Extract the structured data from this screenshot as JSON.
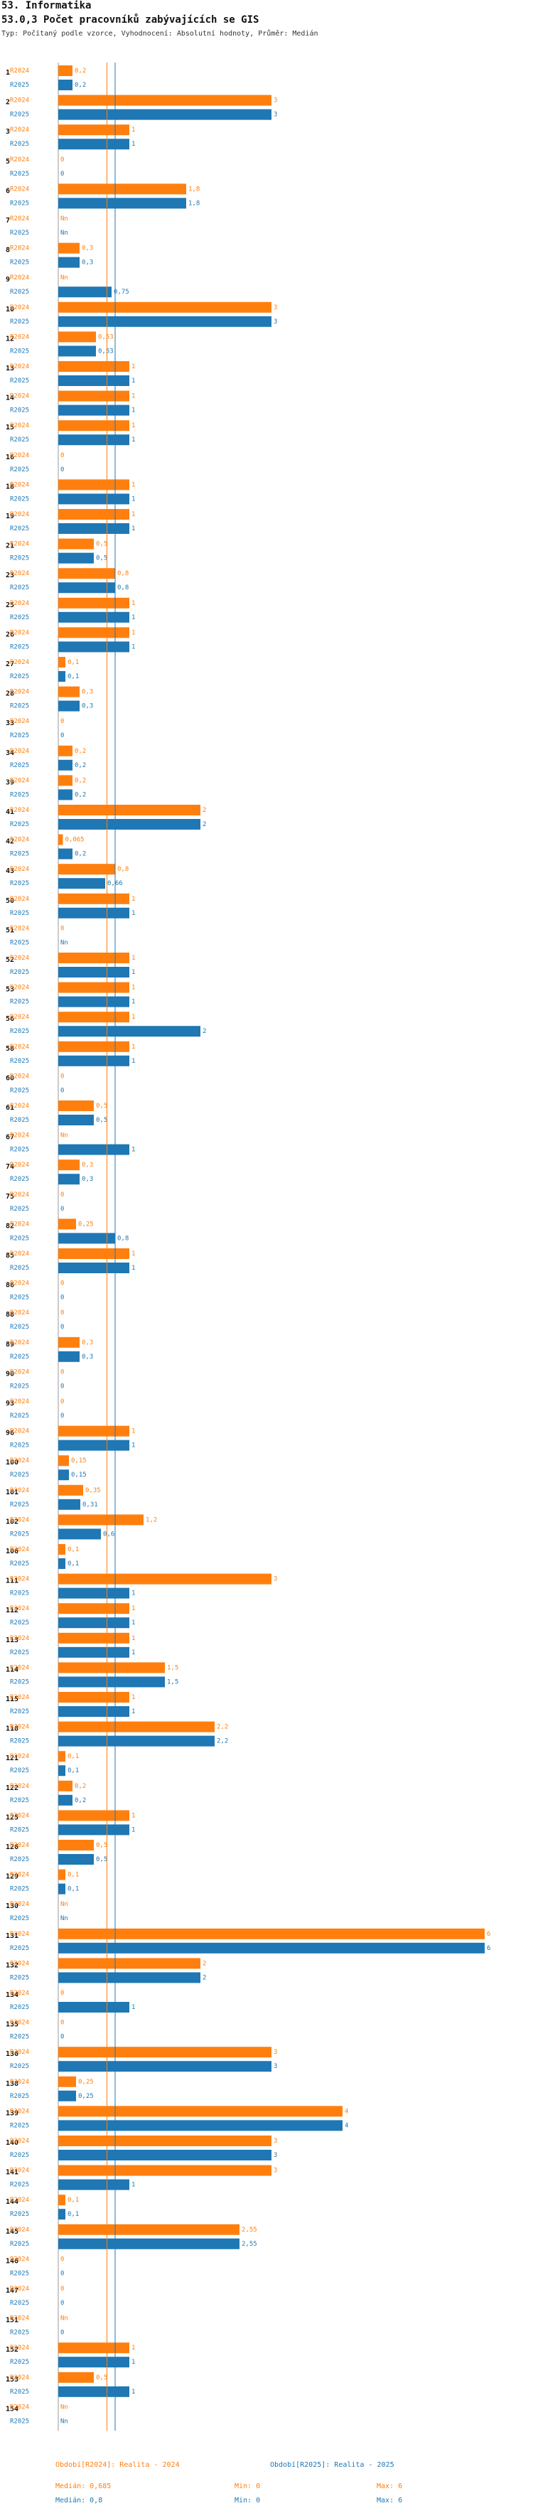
{
  "header": {
    "section": "53. Informatika",
    "indicator": "53.0,3 Počet pracovníků zabývajících se GIS",
    "type_line": "Typ: Počítaný podle vzorce, Vyhodnocení: Absolutní hodnoty, Průměr: Medián"
  },
  "colors": {
    "r2024": "#ff7f0e",
    "r2025": "#1f77b4"
  },
  "chart_data": {
    "type": "bar",
    "orientation": "horizontal",
    "series_labels": [
      "R2024",
      "R2025"
    ],
    "xlim": [
      0,
      6
    ],
    "median_lines": {
      "r2024": 0.685,
      "r2025": 0.8
    },
    "categories": [
      "1",
      "2",
      "3",
      "5",
      "6",
      "7",
      "8",
      "9",
      "10",
      "12",
      "13",
      "14",
      "15",
      "16",
      "18",
      "19",
      "21",
      "23",
      "25",
      "26",
      "27",
      "28",
      "33",
      "34",
      "39",
      "41",
      "42",
      "43",
      "50",
      "51",
      "52",
      "53",
      "56",
      "58",
      "60",
      "61",
      "67",
      "74",
      "75",
      "82",
      "85",
      "86",
      "88",
      "89",
      "90",
      "93",
      "96",
      "100",
      "101",
      "102",
      "106",
      "111",
      "112",
      "113",
      "114",
      "115",
      "118",
      "121",
      "122",
      "125",
      "126",
      "129",
      "130",
      "131",
      "132",
      "134",
      "135",
      "136",
      "138",
      "139",
      "140",
      "141",
      "144",
      "145",
      "146",
      "147",
      "151",
      "152",
      "153",
      "154"
    ],
    "r2024": [
      {
        "v": 0.2,
        "t": "0,2"
      },
      {
        "v": 3,
        "t": "3"
      },
      {
        "v": 1,
        "t": "1"
      },
      {
        "v": 0,
        "t": "0"
      },
      {
        "v": 1.8,
        "t": "1,8"
      },
      {
        "v": null,
        "t": "Nn"
      },
      {
        "v": 0.3,
        "t": "0,3"
      },
      {
        "v": null,
        "t": "Nn"
      },
      {
        "v": 3,
        "t": "3"
      },
      {
        "v": 0.53,
        "t": "0,53"
      },
      {
        "v": 1,
        "t": "1"
      },
      {
        "v": 1,
        "t": "1"
      },
      {
        "v": 1,
        "t": "1"
      },
      {
        "v": 0,
        "t": "0"
      },
      {
        "v": 1,
        "t": "1"
      },
      {
        "v": 1,
        "t": "1"
      },
      {
        "v": 0.5,
        "t": "0,5"
      },
      {
        "v": 0.8,
        "t": "0,8"
      },
      {
        "v": 1,
        "t": "1"
      },
      {
        "v": 1,
        "t": "1"
      },
      {
        "v": 0.1,
        "t": "0,1"
      },
      {
        "v": 0.3,
        "t": "0,3"
      },
      {
        "v": 0,
        "t": "0"
      },
      {
        "v": 0.2,
        "t": "0,2"
      },
      {
        "v": 0.2,
        "t": "0,2"
      },
      {
        "v": 2,
        "t": "2"
      },
      {
        "v": 0.065,
        "t": "0,065"
      },
      {
        "v": 0.8,
        "t": "0,8"
      },
      {
        "v": 1,
        "t": "1"
      },
      {
        "v": 0,
        "t": "0"
      },
      {
        "v": 1,
        "t": "1"
      },
      {
        "v": 1,
        "t": "1"
      },
      {
        "v": 1,
        "t": "1"
      },
      {
        "v": 1,
        "t": "1"
      },
      {
        "v": 0,
        "t": "0"
      },
      {
        "v": 0.5,
        "t": "0,5"
      },
      {
        "v": null,
        "t": "Nn"
      },
      {
        "v": 0.3,
        "t": "0,3"
      },
      {
        "v": 0,
        "t": "0"
      },
      {
        "v": 0.25,
        "t": "0,25"
      },
      {
        "v": 1,
        "t": "1"
      },
      {
        "v": 0,
        "t": "0"
      },
      {
        "v": 0,
        "t": "0"
      },
      {
        "v": 0.3,
        "t": "0,3"
      },
      {
        "v": 0,
        "t": "0"
      },
      {
        "v": 0,
        "t": "0"
      },
      {
        "v": 1,
        "t": "1"
      },
      {
        "v": 0.15,
        "t": "0,15"
      },
      {
        "v": 0.35,
        "t": "0,35"
      },
      {
        "v": 1.2,
        "t": "1,2"
      },
      {
        "v": 0.1,
        "t": "0,1"
      },
      {
        "v": 3,
        "t": "3"
      },
      {
        "v": 1,
        "t": "1"
      },
      {
        "v": 1,
        "t": "1"
      },
      {
        "v": 1.5,
        "t": "1,5"
      },
      {
        "v": 1,
        "t": "1"
      },
      {
        "v": 2.2,
        "t": "2,2"
      },
      {
        "v": 0.1,
        "t": "0,1"
      },
      {
        "v": 0.2,
        "t": "0,2"
      },
      {
        "v": 1,
        "t": "1"
      },
      {
        "v": 0.5,
        "t": "0,5"
      },
      {
        "v": 0.1,
        "t": "0,1"
      },
      {
        "v": null,
        "t": "Nn"
      },
      {
        "v": 6,
        "t": "6"
      },
      {
        "v": 2,
        "t": "2"
      },
      {
        "v": 0,
        "t": "0"
      },
      {
        "v": 0,
        "t": "0"
      },
      {
        "v": 3,
        "t": "3"
      },
      {
        "v": 0.25,
        "t": "0,25"
      },
      {
        "v": 4,
        "t": "4"
      },
      {
        "v": 3,
        "t": "3"
      },
      {
        "v": 3,
        "t": "3"
      },
      {
        "v": 0.1,
        "t": "0,1"
      },
      {
        "v": 2.55,
        "t": "2,55"
      },
      {
        "v": 0,
        "t": "0"
      },
      {
        "v": 0,
        "t": "0"
      },
      {
        "v": null,
        "t": "Nn"
      },
      {
        "v": 1,
        "t": "1"
      },
      {
        "v": 0.5,
        "t": "0,5"
      },
      {
        "v": null,
        "t": "Nn"
      }
    ],
    "r2025": [
      {
        "v": 0.2,
        "t": "0,2"
      },
      {
        "v": 3,
        "t": "3"
      },
      {
        "v": 1,
        "t": "1"
      },
      {
        "v": 0,
        "t": "0"
      },
      {
        "v": 1.8,
        "t": "1,8"
      },
      {
        "v": null,
        "t": "Nn"
      },
      {
        "v": 0.3,
        "t": "0,3"
      },
      {
        "v": 0.75,
        "t": "0,75"
      },
      {
        "v": 3,
        "t": "3"
      },
      {
        "v": 0.53,
        "t": "0,53"
      },
      {
        "v": 1,
        "t": "1"
      },
      {
        "v": 1,
        "t": "1"
      },
      {
        "v": 1,
        "t": "1"
      },
      {
        "v": 0,
        "t": "0"
      },
      {
        "v": 1,
        "t": "1"
      },
      {
        "v": 1,
        "t": "1"
      },
      {
        "v": 0.5,
        "t": "0,5"
      },
      {
        "v": 0.8,
        "t": "0,8"
      },
      {
        "v": 1,
        "t": "1"
      },
      {
        "v": 1,
        "t": "1"
      },
      {
        "v": 0.1,
        "t": "0,1"
      },
      {
        "v": 0.3,
        "t": "0,3"
      },
      {
        "v": 0,
        "t": "0"
      },
      {
        "v": 0.2,
        "t": "0,2"
      },
      {
        "v": 0.2,
        "t": "0,2"
      },
      {
        "v": 2,
        "t": "2"
      },
      {
        "v": 0.2,
        "t": "0,2"
      },
      {
        "v": 0.66,
        "t": "0,66"
      },
      {
        "v": 1,
        "t": "1"
      },
      {
        "v": null,
        "t": "Nn"
      },
      {
        "v": 1,
        "t": "1"
      },
      {
        "v": 1,
        "t": "1"
      },
      {
        "v": 2,
        "t": "2"
      },
      {
        "v": 1,
        "t": "1"
      },
      {
        "v": 0,
        "t": "0"
      },
      {
        "v": 0.5,
        "t": "0,5"
      },
      {
        "v": 1,
        "t": "1"
      },
      {
        "v": 0.3,
        "t": "0,3"
      },
      {
        "v": 0,
        "t": "0"
      },
      {
        "v": 0.8,
        "t": "0,8"
      },
      {
        "v": 1,
        "t": "1"
      },
      {
        "v": 0,
        "t": "0"
      },
      {
        "v": 0,
        "t": "0"
      },
      {
        "v": 0.3,
        "t": "0,3"
      },
      {
        "v": 0,
        "t": "0"
      },
      {
        "v": 0,
        "t": "0"
      },
      {
        "v": 1,
        "t": "1"
      },
      {
        "v": 0.15,
        "t": "0,15"
      },
      {
        "v": 0.31,
        "t": "0,31"
      },
      {
        "v": 0.6,
        "t": "0,6"
      },
      {
        "v": 0.1,
        "t": "0,1"
      },
      {
        "v": 1,
        "t": "1"
      },
      {
        "v": 1,
        "t": "1"
      },
      {
        "v": 1,
        "t": "1"
      },
      {
        "v": 1.5,
        "t": "1,5"
      },
      {
        "v": 1,
        "t": "1"
      },
      {
        "v": 2.2,
        "t": "2,2"
      },
      {
        "v": 0.1,
        "t": "0,1"
      },
      {
        "v": 0.2,
        "t": "0,2"
      },
      {
        "v": 1,
        "t": "1"
      },
      {
        "v": 0.5,
        "t": "0,5"
      },
      {
        "v": 0.1,
        "t": "0,1"
      },
      {
        "v": null,
        "t": "Nn"
      },
      {
        "v": 6,
        "t": "6"
      },
      {
        "v": 2,
        "t": "2"
      },
      {
        "v": 1,
        "t": "1"
      },
      {
        "v": 0,
        "t": "0"
      },
      {
        "v": 3,
        "t": "3"
      },
      {
        "v": 0.25,
        "t": "0,25"
      },
      {
        "v": 4,
        "t": "4"
      },
      {
        "v": 3,
        "t": "3"
      },
      {
        "v": 1,
        "t": "1"
      },
      {
        "v": 0.1,
        "t": "0,1"
      },
      {
        "v": 2.55,
        "t": "2,55"
      },
      {
        "v": 0,
        "t": "0"
      },
      {
        "v": 0,
        "t": "0"
      },
      {
        "v": 0,
        "t": "0"
      },
      {
        "v": 1,
        "t": "1"
      },
      {
        "v": 1,
        "t": "1"
      },
      {
        "v": null,
        "t": "Nn"
      }
    ]
  },
  "legend": {
    "r2024_period": "Období[R2024]: Realita - 2024",
    "r2025_period": "Období[R2025]: Realita - 2025",
    "r2024_median": "Medián: 0,685",
    "r2024_min": "Min: 0",
    "r2024_max": "Max: 6",
    "r2025_median": "Medián: 0,8",
    "r2025_min": "Min: 0",
    "r2025_max": "Max: 6"
  }
}
